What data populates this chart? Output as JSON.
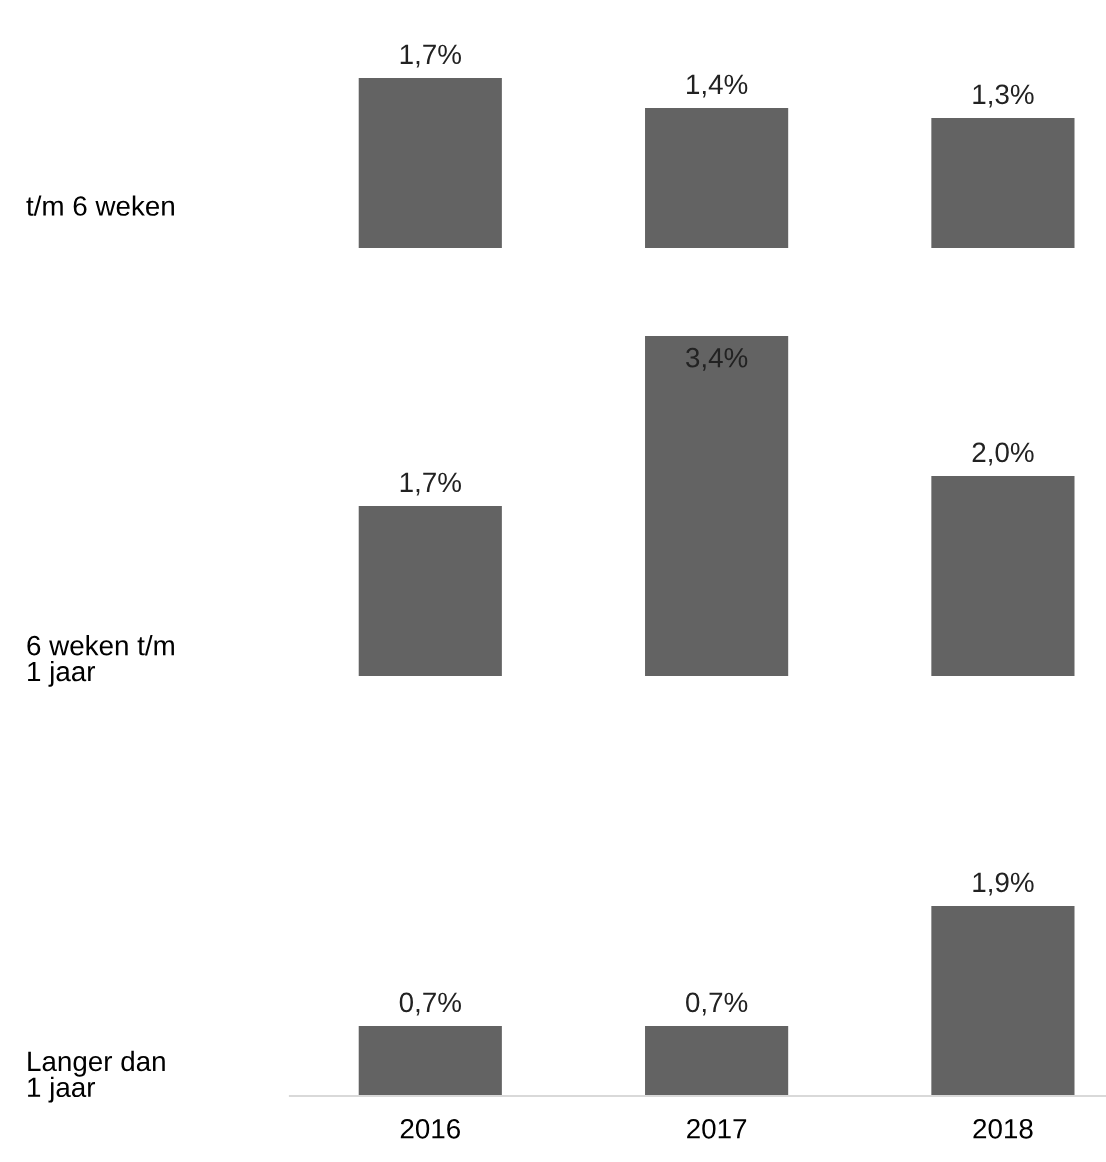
{
  "chart_data": [
    {
      "type": "bar",
      "ylabel": "t/m 6 weken",
      "categories": [
        "2016",
        "2017",
        "2018"
      ],
      "values": [
        1.7,
        1.4,
        1.3
      ],
      "value_labels": [
        "1,7%",
        "1,4%",
        "1,3%"
      ],
      "color": "#636363",
      "tick_labels": false
    },
    {
      "type": "bar",
      "ylabel": "6 weken t/m\n1 jaar",
      "categories": [
        "2016",
        "2017",
        "2018"
      ],
      "values": [
        1.7,
        3.4,
        2.0
      ],
      "value_labels": [
        "1,7%",
        "3,4%",
        "2,0%"
      ],
      "color": "#636363",
      "tick_labels": false
    },
    {
      "type": "bar",
      "ylabel": "Langer dan\n1 jaar",
      "categories": [
        "2016",
        "2017",
        "2018"
      ],
      "values": [
        0.7,
        0.7,
        1.9
      ],
      "value_labels": [
        "0,7%",
        "0,7%",
        "1,9%"
      ],
      "color": "#636363",
      "tick_labels": "x"
    }
  ]
}
